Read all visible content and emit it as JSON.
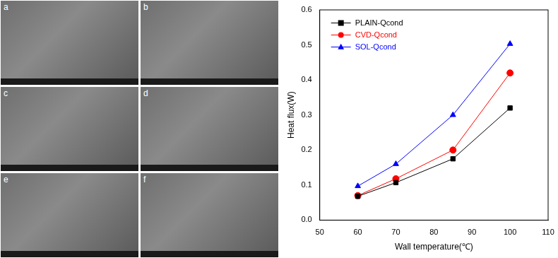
{
  "images": {
    "panels": [
      "a",
      "b",
      "c",
      "d",
      "e",
      "f"
    ]
  },
  "chart_data": {
    "type": "line",
    "x_label": "Wall temperature(℃)",
    "y_label": "Heat flux(W)",
    "x": [
      60,
      70,
      85,
      100
    ],
    "xlim": [
      50,
      110
    ],
    "xticks": [
      50,
      60,
      70,
      80,
      90,
      100,
      110
    ],
    "ylim": [
      0,
      0.6
    ],
    "yticks": [
      {
        "value": 0,
        "label": "0.0"
      },
      0.1,
      0.2,
      0.3,
      0.4,
      0.5,
      0.6
    ],
    "grid": false,
    "legend": "upper left",
    "series": [
      {
        "name": "PLAIN-Qcond",
        "color": "#000000",
        "marker": "square",
        "values": [
          0.068,
          0.107,
          0.175,
          0.32
        ]
      },
      {
        "name": "CVD-Qcond",
        "color": "#ff0000",
        "marker": "circle",
        "values": [
          0.07,
          0.118,
          0.2,
          0.42
        ]
      },
      {
        "name": "SOL-Qcond",
        "color": "#0000ff",
        "marker": "triangle",
        "values": [
          0.097,
          0.16,
          0.3,
          0.503
        ]
      }
    ]
  }
}
